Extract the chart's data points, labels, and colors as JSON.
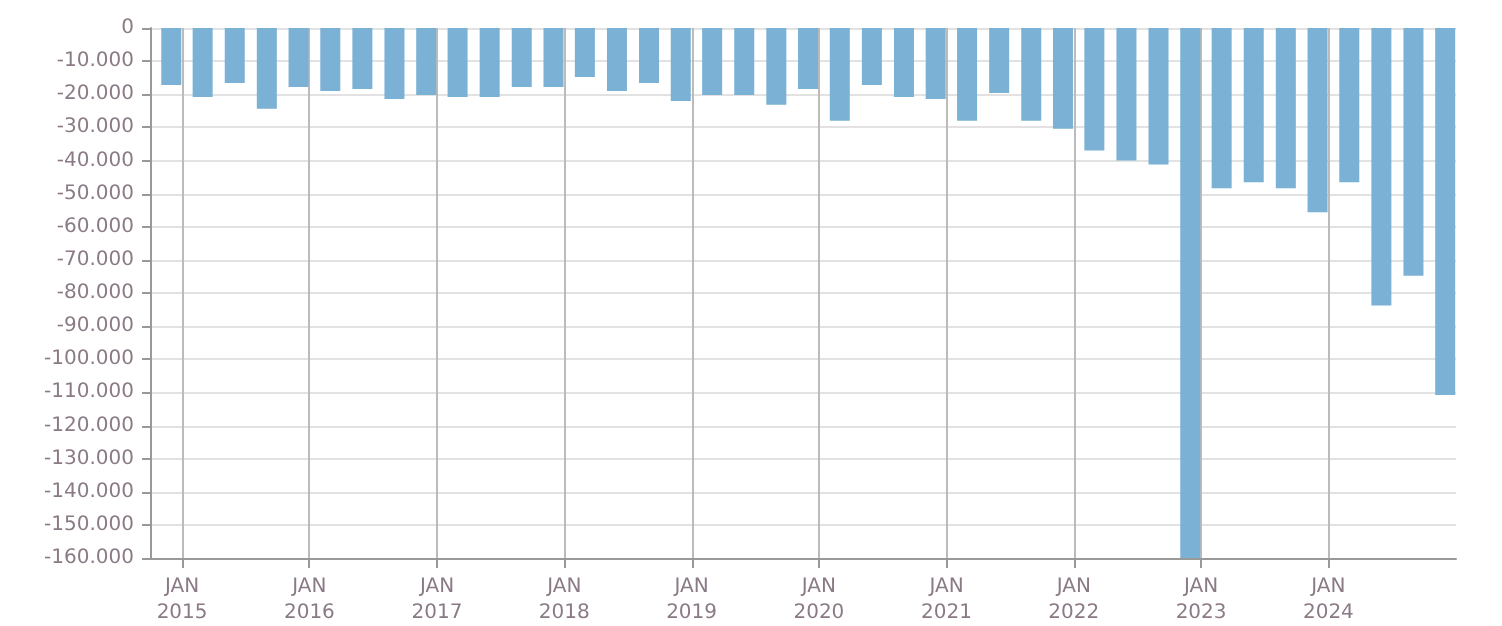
{
  "chart_data": {
    "type": "bar",
    "x": [
      "2014-12",
      "2015-03",
      "2015-06",
      "2015-09",
      "2015-12",
      "2016-03",
      "2016-06",
      "2016-09",
      "2016-12",
      "2017-03",
      "2017-06",
      "2017-09",
      "2017-12",
      "2018-03",
      "2018-06",
      "2018-09",
      "2018-12",
      "2019-03",
      "2019-06",
      "2019-09",
      "2019-12",
      "2020-03",
      "2020-06",
      "2020-09",
      "2020-12",
      "2021-03",
      "2021-06",
      "2021-09",
      "2021-12",
      "2022-03",
      "2022-06",
      "2022-09",
      "2022-12",
      "2023-03",
      "2023-06",
      "2023-09",
      "2023-12",
      "2024-03",
      "2024-06",
      "2024-09",
      "2024-12"
    ],
    "values": [
      -17200,
      -20800,
      -16600,
      -24400,
      -17800,
      -19000,
      -18400,
      -21400,
      -20200,
      -20800,
      -20800,
      -17800,
      -17800,
      -14800,
      -19000,
      -16600,
      -22000,
      -20200,
      -20200,
      -23200,
      -18400,
      -28000,
      -17200,
      -20800,
      -21400,
      -28000,
      -19600,
      -28000,
      -30400,
      -37000,
      -40000,
      -41200,
      -160000,
      -48400,
      -46600,
      -48400,
      -55600,
      -46600,
      -83800,
      -74800,
      -110800
    ],
    "color": "#7ab1d4",
    "xlim": [
      "2014-10",
      "2025-01"
    ],
    "xticks": [
      {
        "value": "2015-01",
        "label": "JAN 2015"
      },
      {
        "value": "2016-01",
        "label": "JAN 2016"
      },
      {
        "value": "2017-01",
        "label": "JAN 2017"
      },
      {
        "value": "2018-01",
        "label": "JAN 2018"
      },
      {
        "value": "2019-01",
        "label": "JAN 2019"
      },
      {
        "value": "2020-01",
        "label": "JAN 2020"
      },
      {
        "value": "2021-01",
        "label": "JAN 2021"
      },
      {
        "value": "2022-01",
        "label": "JAN 2022"
      },
      {
        "value": "2023-01",
        "label": "JAN 2023"
      },
      {
        "value": "2024-01",
        "label": "JAN 2024"
      }
    ],
    "ylim": [
      -160000,
      0
    ],
    "yticks": [
      0,
      {
        "value": -10000,
        "label": "-10.000"
      },
      {
        "value": -20000,
        "label": "-20.000"
      },
      {
        "value": -30000,
        "label": "-30.000"
      },
      {
        "value": -40000,
        "label": "-40.000"
      },
      {
        "value": -50000,
        "label": "-50.000"
      },
      {
        "value": -60000,
        "label": "-60.000"
      },
      {
        "value": -70000,
        "label": "-70.000"
      },
      {
        "value": -80000,
        "label": "-80.000"
      },
      {
        "value": -90000,
        "label": "-90.000"
      },
      {
        "value": -100000,
        "label": "-100.000"
      },
      {
        "value": -110000,
        "label": "-110.000"
      },
      {
        "value": -120000,
        "label": "-120.000"
      },
      {
        "value": -130000,
        "label": "-130.000"
      },
      {
        "value": -140000,
        "label": "-140.000"
      },
      {
        "value": -150000,
        "label": "-150.000"
      },
      {
        "value": -160000,
        "label": "-160.000"
      }
    ],
    "grid": true
  }
}
